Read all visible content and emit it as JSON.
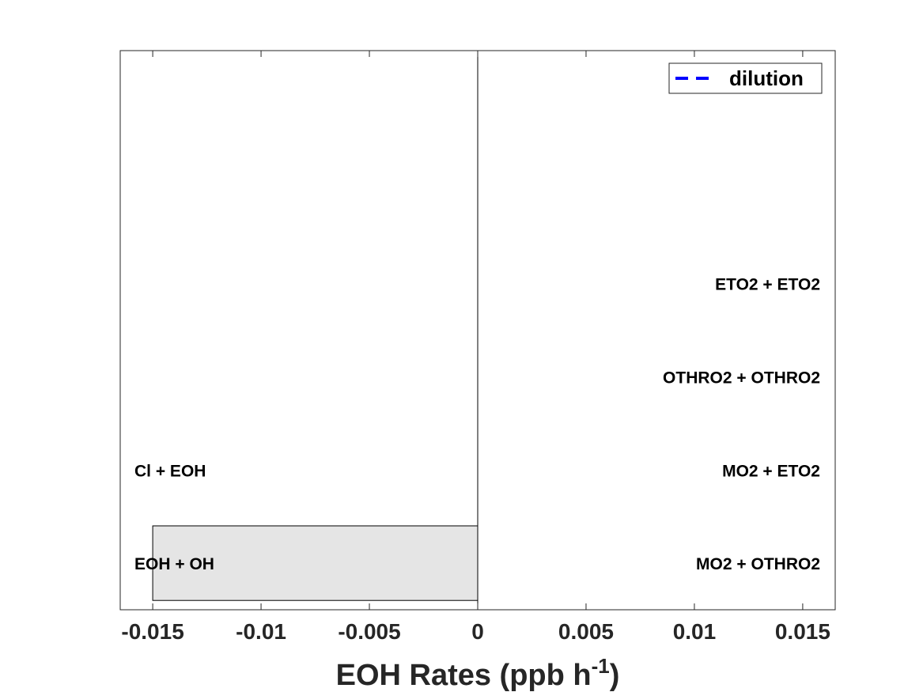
{
  "chart_data": {
    "type": "bar",
    "orientation": "horizontal",
    "xlabel": "EOH Rates (ppb h",
    "xlabel_superscript": "-1",
    "xlabel_suffix": ")",
    "xlim": [
      -0.0165,
      0.0165
    ],
    "xticks": [
      -0.015,
      -0.01,
      -0.005,
      0,
      0.005,
      0.01,
      0.015
    ],
    "xtick_labels": [
      "-0.015",
      "-0.01",
      "-0.005",
      "0",
      "0.005",
      "0.01",
      "0.015"
    ],
    "rows": 6,
    "bars": [
      {
        "row": 1,
        "value": -0.015
      }
    ],
    "loss_labels": [
      {
        "row": 1,
        "text": "EOH + OH"
      },
      {
        "row": 2,
        "text": "Cl + EOH"
      }
    ],
    "production_labels": [
      {
        "row": 1,
        "text": "MO2 + OTHRO2"
      },
      {
        "row": 2,
        "text": "MO2 + ETO2"
      },
      {
        "row": 3,
        "text": "OTHRO2 + OTHRO2"
      },
      {
        "row": 4,
        "text": "ETO2 + ETO2"
      }
    ],
    "legend": {
      "position": "top-right",
      "entries": [
        {
          "label": "dilution",
          "style": "dashed",
          "color": "#0000ff"
        }
      ]
    },
    "grid": false,
    "bar_color": "#e5e5e5"
  }
}
